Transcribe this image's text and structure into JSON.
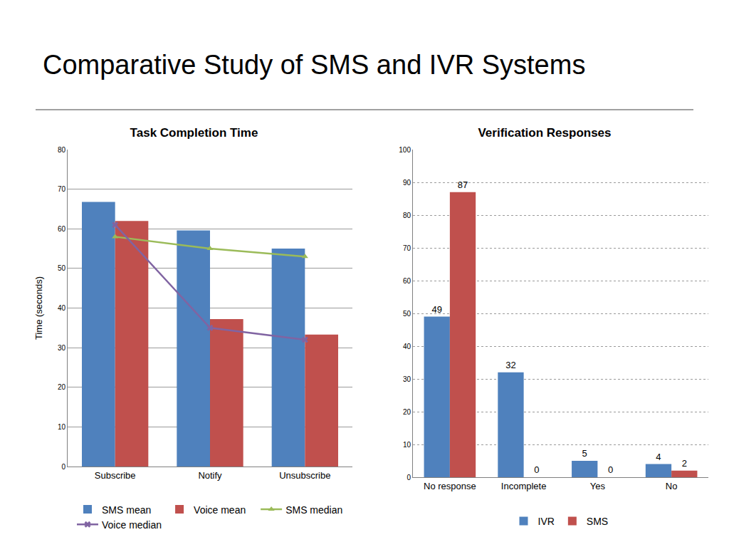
{
  "heading": "Comparative Study of SMS and IVR Systems",
  "chart_data": [
    {
      "type": "bar",
      "title": "Task Completion Time",
      "ylabel": "Time (seconds)",
      "categories": [
        "Subscribe",
        "Notify",
        "Unsubscribe"
      ],
      "series": [
        {
          "name": "SMS mean",
          "type": "bar",
          "color": "#4f81bd",
          "values": [
            66.8,
            59.6,
            55
          ]
        },
        {
          "name": "Voice mean",
          "type": "bar",
          "color": "#c0504d",
          "values": [
            62,
            37.2,
            33.3
          ]
        },
        {
          "name": "SMS median",
          "type": "line",
          "color": "#9bbb59",
          "marker": "triangle-up",
          "values": [
            58,
            55,
            53
          ]
        },
        {
          "name": "Voice median",
          "type": "line",
          "color": "#8064a2",
          "marker": "x",
          "values": [
            61,
            35,
            32
          ]
        }
      ],
      "ylim": [
        0,
        80
      ],
      "yticks": [
        0,
        10,
        20,
        30,
        40,
        50,
        60,
        70,
        80
      ],
      "grid": true,
      "legend": "bottom"
    },
    {
      "type": "bar",
      "title": "Verification Responses",
      "categories": [
        "No response",
        "Incomplete",
        "Yes",
        "No"
      ],
      "series": [
        {
          "name": "IVR",
          "color": "#4f81bd",
          "values": [
            49,
            32,
            5,
            4
          ]
        },
        {
          "name": "SMS",
          "color": "#c0504d",
          "values": [
            87,
            0,
            0,
            2
          ]
        }
      ],
      "ylim": [
        0,
        100
      ],
      "yticks": [
        0,
        10,
        20,
        30,
        40,
        50,
        60,
        70,
        80,
        90,
        100
      ],
      "grid": true,
      "legend": "bottom",
      "data_labels": true
    }
  ]
}
